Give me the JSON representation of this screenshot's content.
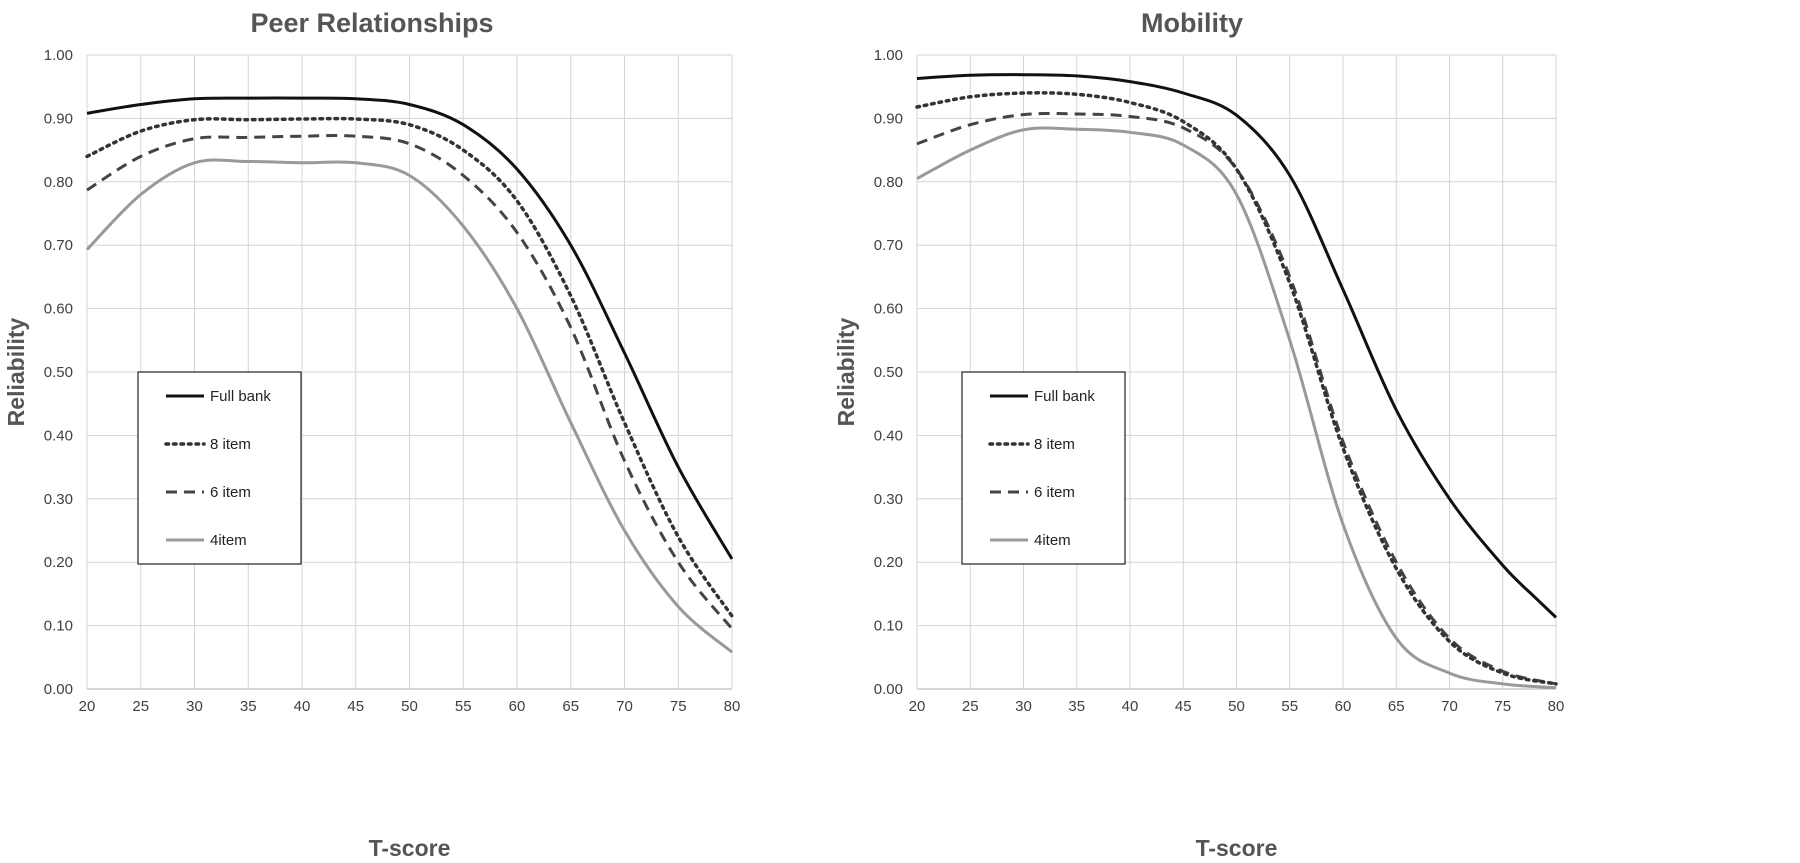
{
  "chart_data": [
    {
      "type": "line",
      "title": "Peer Relationships",
      "xlabel": "T-score",
      "ylabel": "Reliability",
      "xlim": [
        20,
        80
      ],
      "ylim": [
        0,
        1
      ],
      "x_ticks": [
        "20",
        "25",
        "30",
        "35",
        "40",
        "45",
        "50",
        "55",
        "60",
        "65",
        "70",
        "75",
        "80"
      ],
      "y_ticks": [
        "0.00",
        "0.10",
        "0.20",
        "0.30",
        "0.40",
        "0.50",
        "0.60",
        "0.70",
        "0.80",
        "0.90",
        "1.00"
      ],
      "grid": true,
      "legend_position": "left-middle",
      "series": [
        {
          "name": "Full bank",
          "style": "solid",
          "color": "#111111",
          "x": [
            20,
            25,
            30,
            35,
            40,
            45,
            50,
            55,
            60,
            65,
            70,
            75,
            80
          ],
          "y": [
            0.908,
            0.922,
            0.931,
            0.932,
            0.932,
            0.931,
            0.922,
            0.89,
            0.82,
            0.7,
            0.53,
            0.35,
            0.205
          ]
        },
        {
          "name": "8 item",
          "style": "dotted",
          "color": "#333333",
          "x": [
            20,
            25,
            30,
            35,
            40,
            45,
            50,
            55,
            60,
            65,
            70,
            75,
            80
          ],
          "y": [
            0.84,
            0.88,
            0.898,
            0.898,
            0.899,
            0.899,
            0.89,
            0.85,
            0.77,
            0.62,
            0.42,
            0.24,
            0.115
          ]
        },
        {
          "name": "6 item",
          "style": "dashed",
          "color": "#444444",
          "x": [
            20,
            25,
            30,
            35,
            40,
            45,
            50,
            55,
            60,
            65,
            70,
            75,
            80
          ],
          "y": [
            0.787,
            0.84,
            0.868,
            0.87,
            0.872,
            0.872,
            0.86,
            0.81,
            0.72,
            0.57,
            0.36,
            0.2,
            0.095
          ]
        },
        {
          "name": "4item",
          "style": "solid",
          "color": "#999999",
          "x": [
            20,
            25,
            30,
            35,
            40,
            45,
            50,
            55,
            60,
            65,
            70,
            75,
            80
          ],
          "y": [
            0.693,
            0.78,
            0.83,
            0.832,
            0.83,
            0.83,
            0.81,
            0.73,
            0.6,
            0.42,
            0.25,
            0.13,
            0.058
          ]
        }
      ]
    },
    {
      "type": "line",
      "title": "Mobility",
      "xlabel": "T-score",
      "ylabel": "Reliability",
      "xlim": [
        20,
        80
      ],
      "ylim": [
        0,
        1
      ],
      "x_ticks": [
        "20",
        "25",
        "30",
        "35",
        "40",
        "45",
        "50",
        "55",
        "60",
        "65",
        "70",
        "75",
        "80"
      ],
      "y_ticks": [
        "0.00",
        "0.10",
        "0.20",
        "0.30",
        "0.40",
        "0.50",
        "0.60",
        "0.70",
        "0.80",
        "0.90",
        "1.00"
      ],
      "grid": true,
      "legend_position": "left-middle",
      "series": [
        {
          "name": "Full bank",
          "style": "solid",
          "color": "#111111",
          "x": [
            20,
            25,
            30,
            35,
            40,
            45,
            50,
            55,
            60,
            65,
            70,
            75,
            78,
            80
          ],
          "y": [
            0.963,
            0.968,
            0.969,
            0.967,
            0.958,
            0.94,
            0.905,
            0.81,
            0.63,
            0.44,
            0.3,
            0.195,
            0.145,
            0.113
          ]
        },
        {
          "name": "8 item",
          "style": "dotted",
          "color": "#333333",
          "x": [
            20,
            25,
            30,
            35,
            40,
            45,
            50,
            55,
            60,
            65,
            70,
            75,
            80
          ],
          "y": [
            0.918,
            0.934,
            0.94,
            0.938,
            0.925,
            0.895,
            0.82,
            0.64,
            0.38,
            0.19,
            0.075,
            0.025,
            0.008
          ]
        },
        {
          "name": "6 item",
          "style": "dashed",
          "color": "#444444",
          "x": [
            20,
            25,
            30,
            35,
            40,
            45,
            50,
            55,
            60,
            65,
            70,
            75,
            80
          ],
          "y": [
            0.86,
            0.89,
            0.906,
            0.907,
            0.903,
            0.885,
            0.82,
            0.65,
            0.39,
            0.2,
            0.08,
            0.028,
            0.008
          ]
        },
        {
          "name": "4item",
          "style": "solid",
          "color": "#999999",
          "x": [
            20,
            25,
            30,
            35,
            40,
            45,
            50,
            55,
            60,
            65,
            70,
            75,
            80
          ],
          "y": [
            0.805,
            0.85,
            0.882,
            0.883,
            0.878,
            0.858,
            0.78,
            0.55,
            0.26,
            0.08,
            0.025,
            0.008,
            0.002
          ]
        }
      ]
    }
  ]
}
